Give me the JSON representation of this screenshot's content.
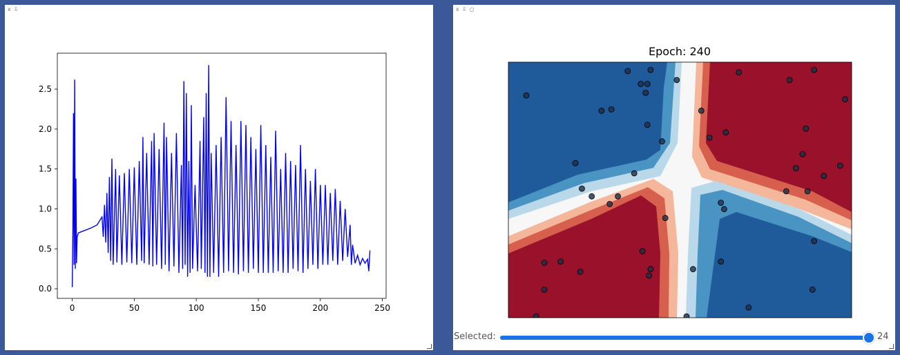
{
  "left_panel": {
    "toolbar": [
      "x",
      "⇩"
    ],
    "chart_data": {
      "type": "line",
      "title": "",
      "xlabel": "",
      "ylabel": "",
      "xlim": [
        -12,
        253
      ],
      "ylim": [
        -0.12,
        2.95
      ],
      "xticks": [
        0,
        50,
        100,
        150,
        200,
        250
      ],
      "yticks": [
        0.0,
        0.5,
        1.0,
        1.5,
        2.0,
        2.5
      ],
      "series_color": "#0000ff",
      "series": [
        {
          "values": [
            [
              0,
              0.02
            ],
            [
              0.5,
              0.75
            ],
            [
              1,
              2.2
            ],
            [
              1.5,
              0.3
            ],
            [
              2,
              2.62
            ],
            [
              2.5,
              0.25
            ],
            [
              3,
              1.38
            ],
            [
              3.5,
              0.32
            ],
            [
              4,
              0.65
            ],
            [
              5,
              0.7
            ],
            [
              10,
              0.73
            ],
            [
              15,
              0.76
            ],
            [
              20,
              0.8
            ],
            [
              24,
              0.9
            ],
            [
              25,
              0.65
            ],
            [
              26,
              1.05
            ],
            [
              27,
              0.58
            ],
            [
              28,
              1.2
            ],
            [
              29,
              0.45
            ],
            [
              30,
              1.4
            ],
            [
              31,
              0.35
            ],
            [
              32,
              1.63
            ],
            [
              33,
              0.3
            ],
            [
              35,
              1.5
            ],
            [
              36,
              0.33
            ],
            [
              38,
              1.42
            ],
            [
              40,
              0.3
            ],
            [
              42,
              1.45
            ],
            [
              44,
              0.33
            ],
            [
              46,
              1.5
            ],
            [
              48,
              0.32
            ],
            [
              50,
              1.52
            ],
            [
              52,
              0.3
            ],
            [
              54,
              1.6
            ],
            [
              56,
              0.35
            ],
            [
              57,
              1.9
            ],
            [
              58,
              0.32
            ],
            [
              60,
              1.7
            ],
            [
              62,
              0.3
            ],
            [
              64,
              1.85
            ],
            [
              65,
              0.28
            ],
            [
              66,
              1.95
            ],
            [
              68,
              0.3
            ],
            [
              70,
              1.75
            ],
            [
              72,
              0.25
            ],
            [
              74,
              2.08
            ],
            [
              75,
              0.3
            ],
            [
              76,
              1.9
            ],
            [
              78,
              0.22
            ],
            [
              80,
              1.7
            ],
            [
              82,
              0.28
            ],
            [
              84,
              1.95
            ],
            [
              86,
              0.2
            ],
            [
              88,
              1.55
            ],
            [
              89,
              0.25
            ],
            [
              90,
              2.6
            ],
            [
              91,
              0.3
            ],
            [
              92,
              2.45
            ],
            [
              93,
              0.15
            ],
            [
              94,
              1.6
            ],
            [
              95,
              0.2
            ],
            [
              96,
              2.3
            ],
            [
              97,
              0.25
            ],
            [
              99,
              1.3
            ],
            [
              101,
              0.22
            ],
            [
              103,
              1.85
            ],
            [
              104,
              0.25
            ],
            [
              106,
              2.15
            ],
            [
              107,
              0.2
            ],
            [
              108,
              2.45
            ],
            [
              109,
              0.15
            ],
            [
              110,
              2.8
            ],
            [
              111,
              0.15
            ],
            [
              112,
              1.7
            ],
            [
              114,
              0.2
            ],
            [
              116,
              1.8
            ],
            [
              118,
              0.15
            ],
            [
              120,
              1.9
            ],
            [
              122,
              0.2
            ],
            [
              124,
              2.4
            ],
            [
              126,
              0.22
            ],
            [
              128,
              2.1
            ],
            [
              130,
              0.2
            ],
            [
              132,
              1.8
            ],
            [
              134,
              0.18
            ],
            [
              136,
              2.1
            ],
            [
              138,
              0.22
            ],
            [
              140,
              2.05
            ],
            [
              142,
              0.2
            ],
            [
              144,
              1.9
            ],
            [
              146,
              0.25
            ],
            [
              148,
              1.75
            ],
            [
              150,
              0.2
            ],
            [
              152,
              2.05
            ],
            [
              154,
              0.2
            ],
            [
              156,
              1.8
            ],
            [
              158,
              0.2
            ],
            [
              160,
              1.65
            ],
            [
              162,
              0.2
            ],
            [
              164,
              1.98
            ],
            [
              166,
              0.22
            ],
            [
              168,
              1.5
            ],
            [
              170,
              0.2
            ],
            [
              172,
              1.7
            ],
            [
              174,
              0.2
            ],
            [
              176,
              1.6
            ],
            [
              178,
              0.25
            ],
            [
              180,
              1.55
            ],
            [
              182,
              0.22
            ],
            [
              184,
              1.8
            ],
            [
              186,
              0.2
            ],
            [
              188,
              1.5
            ],
            [
              190,
              0.25
            ],
            [
              192,
              1.35
            ],
            [
              194,
              0.3
            ],
            [
              196,
              1.5
            ],
            [
              198,
              0.25
            ],
            [
              200,
              1.3
            ],
            [
              202,
              0.3
            ],
            [
              204,
              1.3
            ],
            [
              206,
              0.3
            ],
            [
              208,
              1.2
            ],
            [
              210,
              0.35
            ],
            [
              212,
              1.25
            ],
            [
              214,
              0.3
            ],
            [
              216,
              1.1
            ],
            [
              218,
              0.35
            ],
            [
              220,
              1.0
            ],
            [
              222,
              0.4
            ],
            [
              224,
              0.8
            ],
            [
              225,
              0.3
            ],
            [
              226,
              0.55
            ],
            [
              228,
              0.32
            ],
            [
              230,
              0.42
            ],
            [
              232,
              0.3
            ],
            [
              234,
              0.38
            ],
            [
              236,
              0.32
            ],
            [
              238,
              0.37
            ],
            [
              239,
              0.22
            ],
            [
              240,
              0.48
            ]
          ]
        }
      ]
    }
  },
  "right_panel": {
    "toolbar": [
      "x",
      "⇩",
      "○"
    ],
    "title": "Epoch: 240",
    "slider": {
      "label": "Selected:",
      "value": "24",
      "fraction": 0.98
    },
    "colors": {
      "dark_blue": "#1f5a9a",
      "mid_blue": "#4a94c4",
      "light_blue": "#b9d8ea",
      "white": "#f7f7f7",
      "light_red": "#f5b79b",
      "mid_red": "#d6604d",
      "dark_red": "#99112a",
      "point": "#1c2e4a"
    },
    "points": [
      [
        -0.94,
        0.74
      ],
      [
        -0.32,
        0.93
      ],
      [
        -0.18,
        0.94
      ],
      [
        -0.24,
        0.83
      ],
      [
        -0.2,
        0.83
      ],
      [
        -0.21,
        0.76
      ],
      [
        -0.42,
        0.63
      ],
      [
        -0.48,
        0.62
      ],
      [
        -0.2,
        0.51
      ],
      [
        -0.11,
        0.38
      ],
      [
        -0.02,
        0.86
      ],
      [
        0.13,
        0.62
      ],
      [
        0.36,
        0.92
      ],
      [
        0.28,
        0.45
      ],
      [
        0.18,
        0.41
      ],
      [
        0.67,
        0.86
      ],
      [
        0.82,
        0.94
      ],
      [
        0.77,
        0.48
      ],
      [
        0.75,
        0.28
      ],
      [
        0.88,
        0.11
      ],
      [
        0.71,
        0.17
      ],
      [
        0.98,
        0.19
      ],
      [
        0.65,
        -0.01
      ],
      [
        0.78,
        -0.01
      ],
      [
        1.01,
        0.71
      ],
      [
        -0.64,
        0.21
      ],
      [
        -0.6,
        0.01
      ],
      [
        -0.54,
        -0.05
      ],
      [
        -0.38,
        -0.05
      ],
      [
        -0.43,
        -0.11
      ],
      [
        -0.28,
        0.13
      ],
      [
        -0.09,
        -0.22
      ],
      [
        -0.73,
        -0.56
      ],
      [
        -0.83,
        -0.57
      ],
      [
        -0.23,
        -0.48
      ],
      [
        -0.18,
        -0.62
      ],
      [
        -0.61,
        -0.64
      ],
      [
        -0.19,
        -0.67
      ],
      [
        -0.83,
        -0.78
      ],
      [
        0.08,
        -0.62
      ],
      [
        0.25,
        -0.1
      ],
      [
        0.27,
        -0.15
      ],
      [
        0.25,
        -0.56
      ],
      [
        0.82,
        -0.4
      ],
      [
        0.81,
        -0.78
      ],
      [
        0.42,
        -0.92
      ],
      [
        -0.88,
        -0.99
      ],
      [
        0.04,
        -0.99
      ]
    ]
  }
}
